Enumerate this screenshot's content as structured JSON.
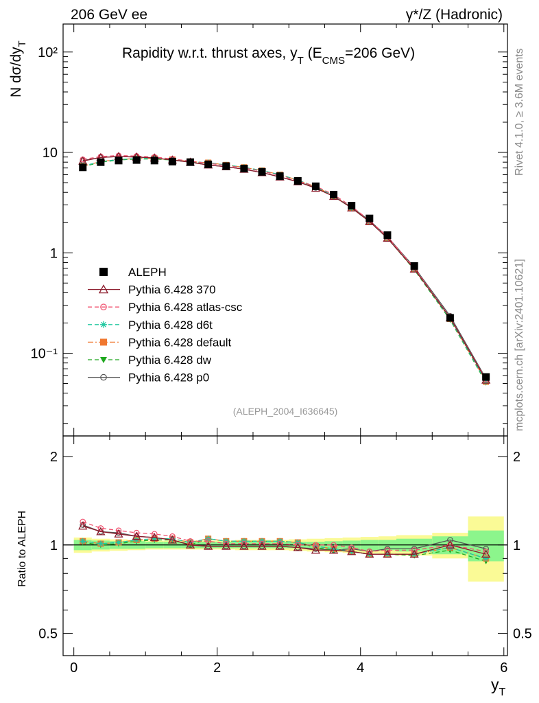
{
  "header": {
    "left_label": "206 GeV ee",
    "right_label": "γ*/Z (Hadronic)"
  },
  "side_labels": {
    "rivet": "Rivet 4.1.0, ≥ 3.6M events",
    "mcplots": "mcplots.cern.ch [arXiv:2401.10621]"
  },
  "colors": {
    "aleph": "#000000",
    "p370": "#8b1a2b",
    "atlas_csc": "#f0506e",
    "d6t": "#22c8a0",
    "default": "#f07830",
    "dw": "#1fa81f",
    "p0": "#555555",
    "band_inner": "#8cf58c",
    "band_outer": "#fafa96"
  },
  "chart_data": [
    {
      "panel": "main",
      "type": "line",
      "title": "Rapidity w.r.t. thrust axes, y_T (E_CMS=206 GeV)",
      "title_parts": {
        "main": "Rapidity w.r.t. thrust axes, y",
        "sub1": "T",
        "mid": " (E",
        "sub2": "CMS",
        "end": "=206 GeV)"
      },
      "ylabel": "N  dσ/dy_T",
      "ylabel_parts": {
        "main": "N  dσ/dy",
        "sub": "T"
      },
      "yscale": "log",
      "ylim": [
        0.015,
        190
      ],
      "xlim": [
        -0.15,
        6.05
      ],
      "ytick_labels": [
        "10⁻¹",
        "1",
        "10",
        "10²"
      ],
      "ytick_values": [
        0.1,
        1,
        10,
        100
      ],
      "watermark": "(ALEPH_2004_I636645)",
      "legend_position": "left",
      "x": [
        0.125,
        0.375,
        0.625,
        0.875,
        1.125,
        1.375,
        1.625,
        1.875,
        2.125,
        2.375,
        2.625,
        2.875,
        3.125,
        3.375,
        3.625,
        3.875,
        4.125,
        4.375,
        4.75,
        5.25,
        5.75
      ],
      "series": [
        {
          "name": "ALEPH",
          "key": "aleph",
          "style": "data",
          "marker": "square",
          "values": [
            7.1,
            8.0,
            8.3,
            8.4,
            8.3,
            8.1,
            8.0,
            7.6,
            7.3,
            6.9,
            6.4,
            5.8,
            5.2,
            4.6,
            3.8,
            2.95,
            2.2,
            1.5,
            0.74,
            0.225,
            0.058
          ]
        },
        {
          "name": "Pythia 6.428 370",
          "key": "p370",
          "style": "solid",
          "marker": "triangle",
          "values": [
            8.2,
            8.9,
            9.1,
            9.0,
            8.8,
            8.4,
            8.0,
            7.5,
            7.2,
            6.8,
            6.3,
            5.7,
            5.1,
            4.4,
            3.65,
            2.8,
            2.05,
            1.4,
            0.69,
            0.225,
            0.054
          ]
        },
        {
          "name": "Pythia 6.428 atlas-csc",
          "key": "atlas_csc",
          "style": "dash",
          "marker": "circle-open",
          "values": [
            8.5,
            9.1,
            9.3,
            9.2,
            9.0,
            8.6,
            8.2,
            7.8,
            7.4,
            7.0,
            6.5,
            5.9,
            5.2,
            4.6,
            3.8,
            2.9,
            2.1,
            1.45,
            0.71,
            0.225,
            0.055
          ]
        },
        {
          "name": "Pythia 6.428 d6t",
          "key": "d6t",
          "style": "dash",
          "marker": "star",
          "values": [
            7.3,
            8.1,
            8.5,
            8.7,
            8.7,
            8.5,
            8.1,
            7.9,
            7.5,
            7.1,
            6.6,
            6.0,
            5.3,
            4.55,
            3.7,
            2.8,
            2.05,
            1.4,
            0.69,
            0.22,
            0.052
          ]
        },
        {
          "name": "Pythia 6.428 default",
          "key": "default",
          "style": "dashdot",
          "marker": "square",
          "values": [
            7.3,
            8.1,
            8.5,
            8.7,
            8.7,
            8.5,
            8.1,
            7.9,
            7.5,
            7.1,
            6.6,
            6.0,
            5.3,
            4.55,
            3.7,
            2.8,
            2.05,
            1.4,
            0.69,
            0.22,
            0.052
          ]
        },
        {
          "name": "Pythia 6.428 dw",
          "key": "dw",
          "style": "dash",
          "marker": "triangle-down",
          "values": [
            7.2,
            8.0,
            8.4,
            8.6,
            8.6,
            8.4,
            8.0,
            7.9,
            7.5,
            7.1,
            6.6,
            6.0,
            5.3,
            4.5,
            3.65,
            2.8,
            2.05,
            1.4,
            0.68,
            0.215,
            0.051
          ]
        },
        {
          "name": "Pythia 6.428 p0",
          "key": "p0",
          "style": "solid",
          "marker": "circle-open",
          "values": [
            8.3,
            8.9,
            9.1,
            9.0,
            8.8,
            8.4,
            8.0,
            7.5,
            7.2,
            6.8,
            6.3,
            5.7,
            5.1,
            4.45,
            3.65,
            2.85,
            2.1,
            1.45,
            0.72,
            0.235,
            0.056
          ]
        }
      ]
    },
    {
      "panel": "ratio",
      "type": "line",
      "ylabel": "Ratio to ALEPH",
      "xlabel": "y_T",
      "xlabel_parts": {
        "main": "y",
        "sub": "T"
      },
      "yscale": "log",
      "ylim": [
        0.42,
        2.35
      ],
      "xlim": [
        -0.15,
        6.05
      ],
      "xtick_values": [
        0,
        2,
        4,
        6
      ],
      "xtick_labels": [
        "0",
        "2",
        "4",
        "6"
      ],
      "ytick_values": [
        0.5,
        1,
        2
      ],
      "ytick_labels": [
        "0.5",
        "1",
        "2"
      ],
      "bins": [
        [
          0,
          0.25
        ],
        [
          0.25,
          0.5
        ],
        [
          0.5,
          0.75
        ],
        [
          0.75,
          1
        ],
        [
          1,
          1.25
        ],
        [
          1.25,
          1.5
        ],
        [
          1.5,
          1.75
        ],
        [
          1.75,
          2
        ],
        [
          2,
          2.25
        ],
        [
          2.25,
          2.5
        ],
        [
          2.5,
          2.75
        ],
        [
          2.75,
          3
        ],
        [
          3,
          3.25
        ],
        [
          3.25,
          3.5
        ],
        [
          3.5,
          3.75
        ],
        [
          3.75,
          4
        ],
        [
          4,
          4.25
        ],
        [
          4.25,
          4.5
        ],
        [
          4.5,
          5
        ],
        [
          5,
          5.5
        ],
        [
          5.5,
          6
        ]
      ],
      "band_inner": [
        0.04,
        0.035,
        0.03,
        0.03,
        0.025,
        0.025,
        0.025,
        0.025,
        0.025,
        0.025,
        0.025,
        0.025,
        0.025,
        0.025,
        0.03,
        0.035,
        0.04,
        0.04,
        0.05,
        0.07,
        0.12
      ],
      "band_outer": [
        0.06,
        0.05,
        0.045,
        0.04,
        0.035,
        0.035,
        0.035,
        0.035,
        0.035,
        0.04,
        0.04,
        0.04,
        0.045,
        0.05,
        0.055,
        0.06,
        0.065,
        0.07,
        0.08,
        0.1,
        0.25
      ],
      "x": [
        0.125,
        0.375,
        0.625,
        0.875,
        1.125,
        1.375,
        1.625,
        1.875,
        2.125,
        2.375,
        2.625,
        2.875,
        3.125,
        3.375,
        3.625,
        3.875,
        4.125,
        4.375,
        4.75,
        5.25,
        5.75
      ],
      "series": [
        {
          "key": "p370",
          "values": [
            1.16,
            1.11,
            1.09,
            1.07,
            1.06,
            1.04,
            1.0,
            0.99,
            0.99,
            0.99,
            0.99,
            0.99,
            0.98,
            0.96,
            0.96,
            0.95,
            0.93,
            0.93,
            0.93,
            1.0,
            0.93
          ]
        },
        {
          "key": "atlas_csc",
          "values": [
            1.2,
            1.14,
            1.12,
            1.1,
            1.09,
            1.07,
            1.03,
            1.03,
            1.01,
            1.01,
            1.01,
            1.01,
            1.0,
            1.0,
            1.0,
            0.98,
            0.95,
            0.96,
            0.96,
            1.0,
            0.95
          ]
        },
        {
          "key": "d6t",
          "values": [
            1.03,
            1.01,
            1.02,
            1.04,
            1.05,
            1.05,
            1.02,
            1.05,
            1.03,
            1.03,
            1.03,
            1.03,
            1.02,
            0.99,
            0.97,
            0.95,
            0.93,
            0.93,
            0.93,
            0.98,
            0.9
          ]
        },
        {
          "key": "default",
          "values": [
            1.03,
            1.01,
            1.02,
            1.04,
            1.05,
            1.05,
            1.02,
            1.05,
            1.03,
            1.03,
            1.03,
            1.03,
            1.02,
            0.99,
            0.97,
            0.95,
            0.93,
            0.93,
            0.93,
            0.98,
            0.9
          ]
        },
        {
          "key": "dw",
          "values": [
            1.02,
            1.0,
            1.01,
            1.03,
            1.04,
            1.04,
            1.0,
            1.05,
            1.03,
            1.03,
            1.03,
            1.03,
            1.02,
            0.98,
            0.96,
            0.95,
            0.93,
            0.93,
            0.92,
            0.96,
            0.88
          ]
        },
        {
          "key": "p0",
          "values": [
            1.17,
            1.11,
            1.1,
            1.07,
            1.06,
            1.04,
            1.0,
            0.99,
            0.99,
            0.99,
            0.99,
            0.99,
            0.98,
            0.97,
            0.96,
            0.97,
            0.95,
            0.97,
            0.97,
            1.04,
            0.97
          ]
        }
      ]
    }
  ]
}
